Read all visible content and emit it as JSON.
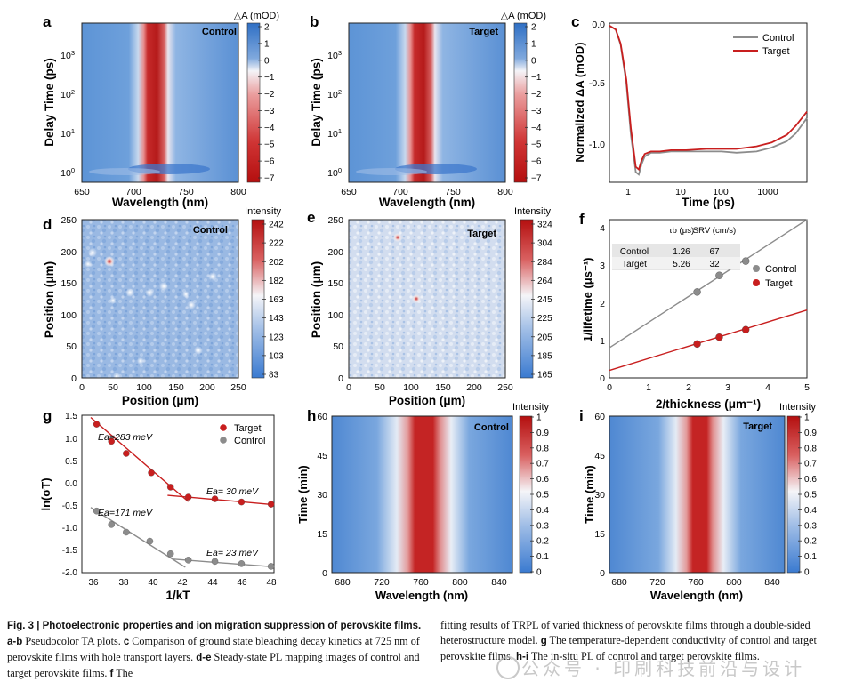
{
  "panels": {
    "a": {
      "letter": "a",
      "label": "Control",
      "cbar_title": "△A (mOD)",
      "cbar_ticks": [
        "2",
        "1",
        "0",
        "−1",
        "−2",
        "−3",
        "−4",
        "−5",
        "−6",
        "−7"
      ],
      "ylabel": "Delay Time (ps)",
      "xlabel": "Wavelength (nm)",
      "xticks": [
        "650",
        "700",
        "750",
        "800"
      ],
      "yticks": [
        "10",
        "10",
        "10",
        "10"
      ],
      "yexp": [
        "0",
        "1",
        "2",
        "3"
      ]
    },
    "b": {
      "letter": "b",
      "label": "Target",
      "cbar_title": "△A (mOD)",
      "cbar_ticks": [
        "2",
        "1",
        "0",
        "−1",
        "−2",
        "−3",
        "−4",
        "−5",
        "−6",
        "−7"
      ],
      "ylabel": "Delay Time (ps)",
      "xlabel": "Wavelength (nm)",
      "xticks": [
        "650",
        "700",
        "750",
        "800"
      ],
      "yticks": [
        "10",
        "10",
        "10",
        "10"
      ],
      "yexp": [
        "0",
        "1",
        "2",
        "3"
      ]
    },
    "c": {
      "letter": "c",
      "ylabel": "Normalized ΔA (mOD)",
      "xlabel": "Time (ps)",
      "yticks": [
        "0.0",
        "-0.5",
        "-1.0"
      ],
      "xticks": [
        "1",
        "10",
        "100",
        "1000"
      ],
      "legend": [
        "Control",
        "Target"
      ]
    },
    "d": {
      "letter": "d",
      "label": "Control",
      "cbar_title": "Intensity",
      "cbar_ticks": [
        "242",
        "222",
        "202",
        "182",
        "163",
        "143",
        "123",
        "103",
        "83"
      ],
      "ylabel": "Position (μm)",
      "xlabel": "Position (μm)",
      "ticks": [
        "0",
        "50",
        "100",
        "150",
        "200",
        "250"
      ]
    },
    "e": {
      "letter": "e",
      "label": "Target",
      "cbar_title": "Intensity",
      "cbar_ticks": [
        "324",
        "304",
        "284",
        "264",
        "245",
        "225",
        "205",
        "185",
        "165"
      ],
      "ylabel": "Position (μm)",
      "xlabel": "Position (μm)",
      "ticks": [
        "0",
        "50",
        "100",
        "150",
        "200",
        "250"
      ]
    },
    "f": {
      "letter": "f",
      "ylabel": "1/lifetime (μs⁻¹)",
      "xlabel": "2/thickness (μm⁻¹)",
      "xticks": [
        "0",
        "1",
        "2",
        "3",
        "4",
        "5"
      ],
      "yticks": [
        "0",
        "1",
        "2",
        "3",
        "4"
      ],
      "legend": [
        "Control",
        "Target"
      ],
      "table": {
        "headers": [
          "",
          "τb (μs)",
          "SRV (cm/s)"
        ],
        "rows": [
          [
            "Control",
            "1.26",
            "67"
          ],
          [
            "Target",
            "5.26",
            "32"
          ]
        ]
      }
    },
    "g": {
      "letter": "g",
      "ylabel": "ln(σT)",
      "xlabel": "1/kT",
      "xticks": [
        "36",
        "38",
        "40",
        "42",
        "44",
        "46",
        "48"
      ],
      "yticks": [
        "1.5",
        "1.0",
        "0.5",
        "0.0",
        "-0.5",
        "-1.0",
        "-1.5",
        "-2.0"
      ],
      "legend": [
        "Target",
        "Control"
      ],
      "annotations": [
        "Ea=283 meV",
        "Ea= 30 meV",
        "Ea=171 meV",
        "Ea= 23 meV"
      ]
    },
    "h": {
      "letter": "h",
      "label": "Control",
      "cbar_title": "Intensity",
      "cbar_ticks": [
        "1",
        "0.9",
        "0.8",
        "0.7",
        "0.6",
        "0.5",
        "0.4",
        "0.3",
        "0.2",
        "0.1",
        "0"
      ],
      "ylabel": "Time (min)",
      "xlabel": "Wavelength (nm)",
      "xticks": [
        "680",
        "720",
        "760",
        "800",
        "840"
      ],
      "yticks": [
        "60",
        "45",
        "30",
        "15",
        "0"
      ]
    },
    "i": {
      "letter": "i",
      "label": "Target",
      "cbar_title": "Intensity",
      "cbar_ticks": [
        "1",
        "0.9",
        "0.8",
        "0.7",
        "0.6",
        "0.5",
        "0.4",
        "0.3",
        "0.2",
        "0.1",
        "0"
      ],
      "ylabel": "Time (min)",
      "xlabel": "Wavelength (nm)",
      "xticks": [
        "680",
        "720",
        "760",
        "800",
        "840"
      ],
      "yticks": [
        "60",
        "45",
        "30",
        "15",
        "0"
      ]
    }
  },
  "chart_data": [
    {
      "panel": "c",
      "type": "line",
      "xscale": "log",
      "xlim": [
        0.6,
        5000
      ],
      "ylim": [
        -1.22,
        0.02
      ],
      "series": [
        {
          "name": "Control",
          "color": "#8c8c8c",
          "x": [
            0.6,
            0.8,
            1,
            1.3,
            1.6,
            2,
            2.3,
            2.6,
            3,
            4,
            6,
            10,
            20,
            50,
            100,
            200,
            500,
            1000,
            2000,
            3000,
            5000
          ],
          "y": [
            0,
            -0.03,
            -0.15,
            -0.45,
            -0.85,
            -1.14,
            -1.16,
            -1.08,
            -1.02,
            -0.99,
            -0.99,
            -0.98,
            -0.98,
            -0.98,
            -0.98,
            -0.99,
            -0.98,
            -0.95,
            -0.9,
            -0.84,
            -0.72
          ]
        },
        {
          "name": "Target",
          "color": "#c81e1e",
          "x": [
            0.6,
            0.8,
            1,
            1.3,
            1.6,
            2,
            2.3,
            2.6,
            3,
            4,
            6,
            10,
            20,
            50,
            100,
            200,
            500,
            1000,
            2000,
            3000,
            5000
          ],
          "y": [
            0,
            -0.03,
            -0.14,
            -0.42,
            -0.8,
            -1.1,
            -1.12,
            -1.05,
            -1.0,
            -0.98,
            -0.98,
            -0.97,
            -0.97,
            -0.96,
            -0.96,
            -0.96,
            -0.94,
            -0.91,
            -0.85,
            -0.78,
            -0.67
          ]
        }
      ]
    },
    {
      "panel": "f",
      "type": "scatter",
      "xlim": [
        0,
        5
      ],
      "ylim": [
        0,
        4.2
      ],
      "series": [
        {
          "name": "Control",
          "color": "#8c8c8c",
          "x": [
            2.22,
            2.78,
            3.45
          ],
          "y": [
            2.28,
            2.72,
            3.1
          ],
          "fit": [
            [
              0,
              0.8
            ],
            [
              5,
              4.2
            ]
          ]
        },
        {
          "name": "Target",
          "color": "#c81e1e",
          "x": [
            2.22,
            2.78,
            3.45
          ],
          "y": [
            0.9,
            1.08,
            1.28
          ],
          "fit": [
            [
              0,
              0.2
            ],
            [
              5,
              1.8
            ]
          ]
        }
      ]
    },
    {
      "panel": "g",
      "type": "scatter",
      "xlim": [
        35,
        48
      ],
      "ylim": [
        -2,
        1.5
      ],
      "series": [
        {
          "name": "Target",
          "color": "#c81e1e",
          "x": [
            36,
            37,
            38,
            39.7,
            41,
            42.2,
            44,
            45.8,
            47.8
          ],
          "y": [
            1.3,
            0.92,
            0.65,
            0.22,
            -0.1,
            -0.32,
            -0.36,
            -0.43,
            -0.48
          ],
          "fits": [
            [
              [
                35.6,
                1.45
              ],
              [
                42.2,
                -0.42
              ]
            ],
            [
              [
                40.8,
                -0.28
              ],
              [
                48,
                -0.49
              ]
            ]
          ]
        },
        {
          "name": "Control",
          "color": "#8c8c8c",
          "x": [
            36,
            37,
            38,
            39.6,
            41,
            42.2,
            44,
            45.8,
            47.8
          ],
          "y": [
            -0.63,
            -0.93,
            -1.1,
            -1.3,
            -1.58,
            -1.72,
            -1.75,
            -1.8,
            -1.86
          ],
          "fits": [
            [
              [
                35.6,
                -0.55
              ],
              [
                42,
                -1.88
              ]
            ],
            [
              [
                41.2,
                -1.7
              ],
              [
                48,
                -1.87
              ]
            ]
          ]
        }
      ]
    }
  ],
  "caption": {
    "left_bold1": "Fig. 3",
    "left_sep": " | ",
    "left_bold2": "Photoelectronic properties and ion migration suppression of perovskite films.",
    "left_a": " a",
    "left_a2": "-b",
    "left_t1": " Pseudocolor TA plots. ",
    "left_c": "c",
    "left_t2": " Comparison of ground state bleaching decay kinetics at 725 nm of perovskite films with hole transport layers. ",
    "left_de": "d-e",
    "left_t3": " Steady-state PL mapping images of control and target perovskite films. ",
    "left_f": "f",
    "left_t4": " The",
    "right_t1": "fitting results of TRPL of varied thickness of perovskite films through a double-sided heterostructure model. ",
    "right_g": "g",
    "right_t2": " The temperature-dependent conductivity of control and target perovskite films. ",
    "right_hi": "h-i",
    "right_t3": " The in-situ PL of control and target perovskite films."
  },
  "watermark": "公众号 · 印刷科技前沿与设计"
}
